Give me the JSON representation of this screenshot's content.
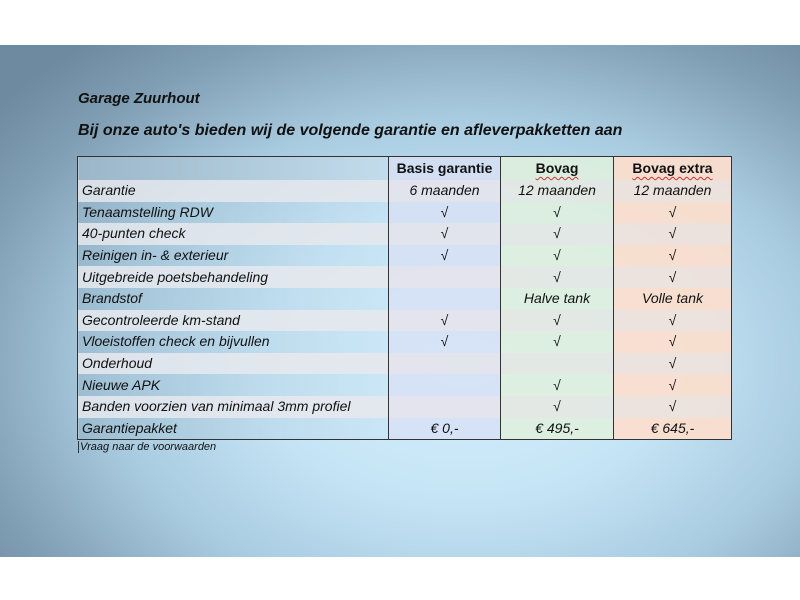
{
  "title": "Garage Zuurhout",
  "subtitle": "Bij onze auto's bieden wij de volgende garantie en afleverpakketten aan",
  "table": {
    "headers": [
      "",
      "Basis garantie",
      "Bovag",
      "Bovag extra"
    ],
    "rows": [
      {
        "label": "Garantie",
        "cells": [
          "6 maanden",
          "12 maanden",
          "12 maanden"
        ]
      },
      {
        "label": "Tenaamstelling RDW",
        "cells": [
          "√",
          "√",
          "√"
        ]
      },
      {
        "label": "40-punten check",
        "cells": [
          "√",
          "√",
          "√"
        ]
      },
      {
        "label": "Reinigen in- & exterieur",
        "cells": [
          "√",
          "√",
          "√"
        ]
      },
      {
        "label": "Uitgebreide poetsbehandeling",
        "cells": [
          "",
          "√",
          "√"
        ]
      },
      {
        "label": "Brandstof",
        "cells": [
          "",
          "Halve tank",
          "Volle tank"
        ]
      },
      {
        "label": "Gecontroleerde km-stand",
        "cells": [
          "√",
          "√",
          "√"
        ]
      },
      {
        "label": "Vloeistoffen check en bijvullen",
        "cells": [
          "√",
          "√",
          "√"
        ]
      },
      {
        "label": "Onderhoud",
        "cells": [
          "",
          "",
          "√"
        ]
      },
      {
        "label": "Nieuwe APK",
        "cells": [
          "",
          "√",
          "√"
        ]
      },
      {
        "label": "Banden voorzien van minimaal 3mm profiel",
        "cells": [
          "",
          "√",
          "√"
        ]
      },
      {
        "label": "Garantiepakket",
        "cells": [
          "€ 0,-",
          "€ 495,-",
          "€ 645,-"
        ]
      }
    ]
  },
  "note": "Vraag naar de voorwaarden",
  "colors": {
    "basis": "#d7e1f5",
    "bovag": "#def0de",
    "bovag_extra": "#fcdecd"
  }
}
